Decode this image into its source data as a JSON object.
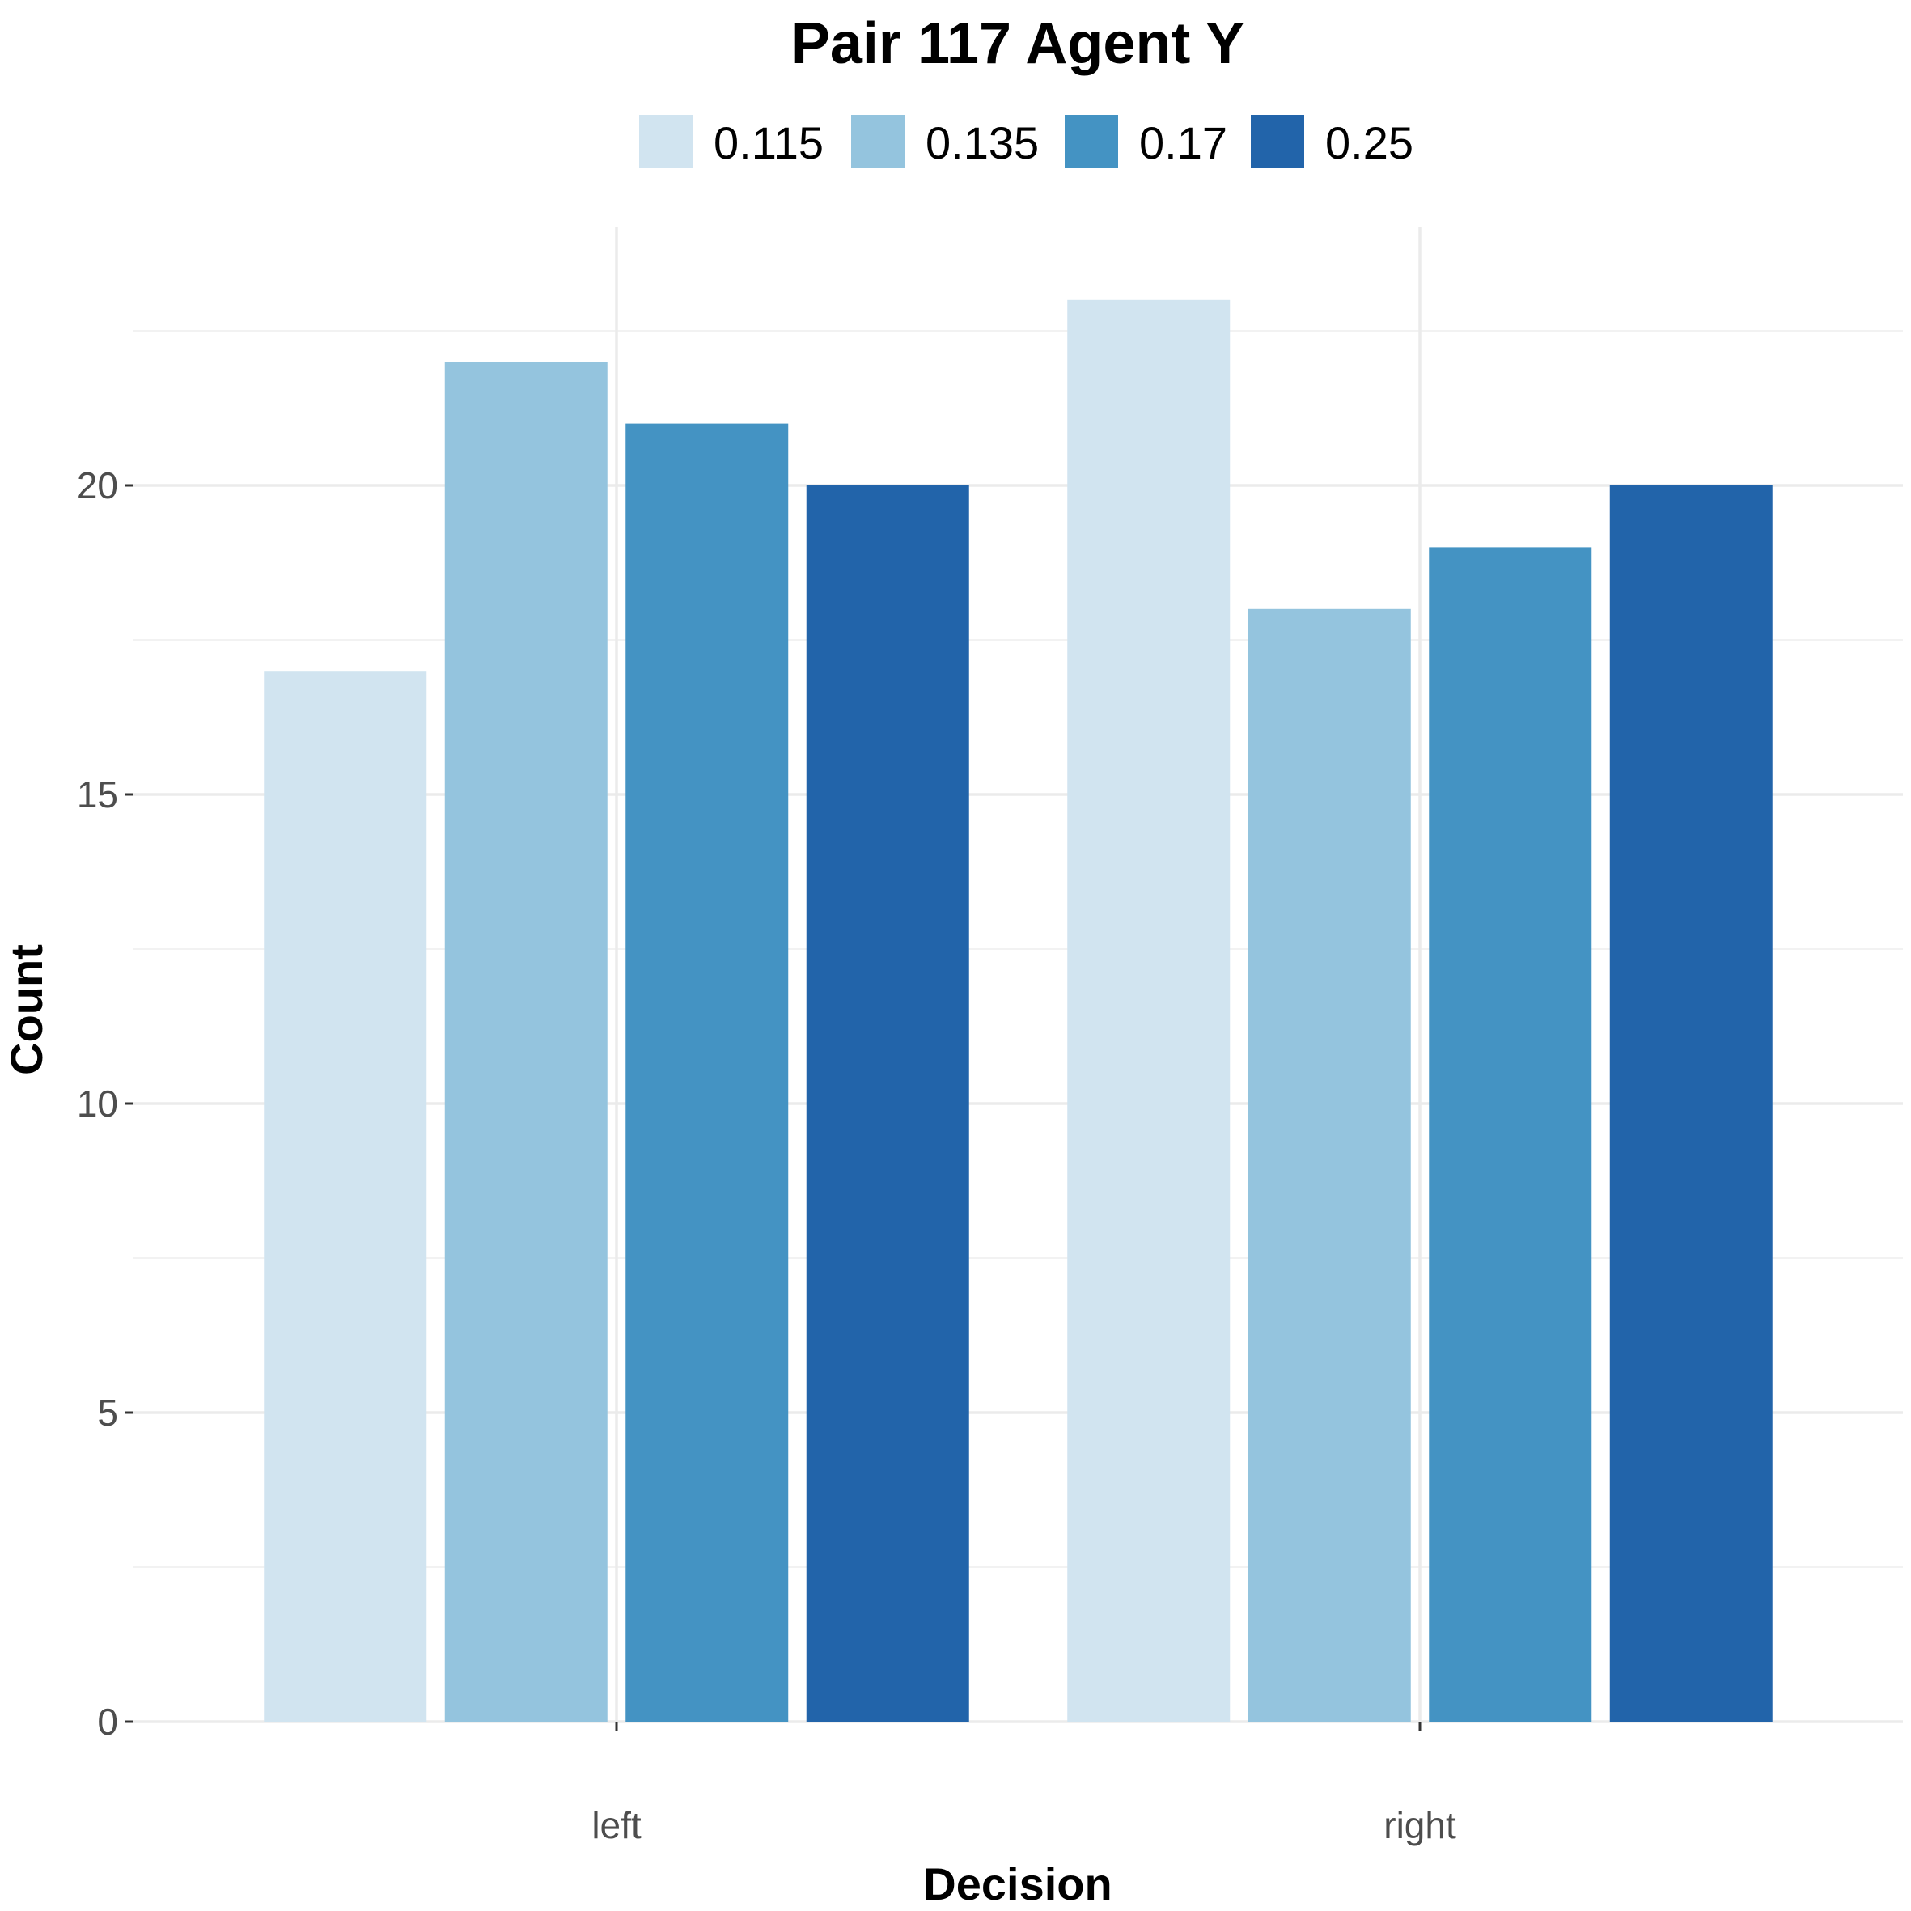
{
  "chart_data": {
    "type": "bar",
    "title": "Pair 117 Agent Y",
    "xlabel": "Decision",
    "ylabel": "Count",
    "categories": [
      "left",
      "right"
    ],
    "ylim": [
      0,
      24
    ],
    "yticks": [
      0,
      5,
      10,
      15,
      20
    ],
    "legend_position": "top",
    "grid": true,
    "series": [
      {
        "name": "0.115",
        "color": "#d1e4f0",
        "values": [
          17,
          23
        ]
      },
      {
        "name": "0.135",
        "color": "#94c4de",
        "values": [
          22,
          18
        ]
      },
      {
        "name": "0.17",
        "color": "#4493c3",
        "values": [
          21,
          19
        ]
      },
      {
        "name": "0.25",
        "color": "#2264aa",
        "values": [
          20,
          20
        ]
      }
    ]
  }
}
